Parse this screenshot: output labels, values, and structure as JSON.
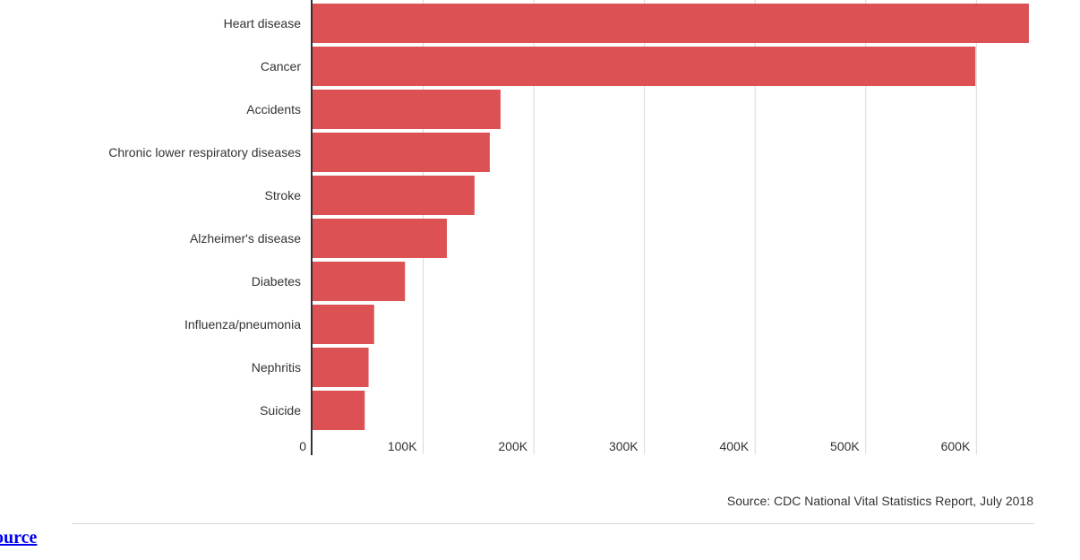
{
  "chart_data": {
    "type": "bar",
    "orientation": "horizontal",
    "categories": [
      "Heart disease",
      "Cancer",
      "Accidents",
      "Chronic lower respiratory diseases",
      "Stroke",
      "Alzheimer's disease",
      "Diabetes",
      "Influenza/pneumonia",
      "Nephritis",
      "Suicide"
    ],
    "values": [
      647457,
      599108,
      169936,
      160201,
      146383,
      121404,
      83564,
      55672,
      50633,
      47173
    ],
    "xlim": [
      0,
      650000
    ],
    "x_ticks": [
      0,
      100000,
      200000,
      300000,
      400000,
      500000,
      600000
    ],
    "x_tick_labels": [
      "0",
      "100K",
      "200K",
      "300K",
      "400K",
      "500K",
      "600K"
    ],
    "title": "",
    "xlabel": "",
    "ylabel": "",
    "grid": true,
    "bar_color": "#dc5254",
    "source": "Source: CDC National Vital Statistics Report, July 2018"
  },
  "footer": {
    "link_label": "ource"
  }
}
